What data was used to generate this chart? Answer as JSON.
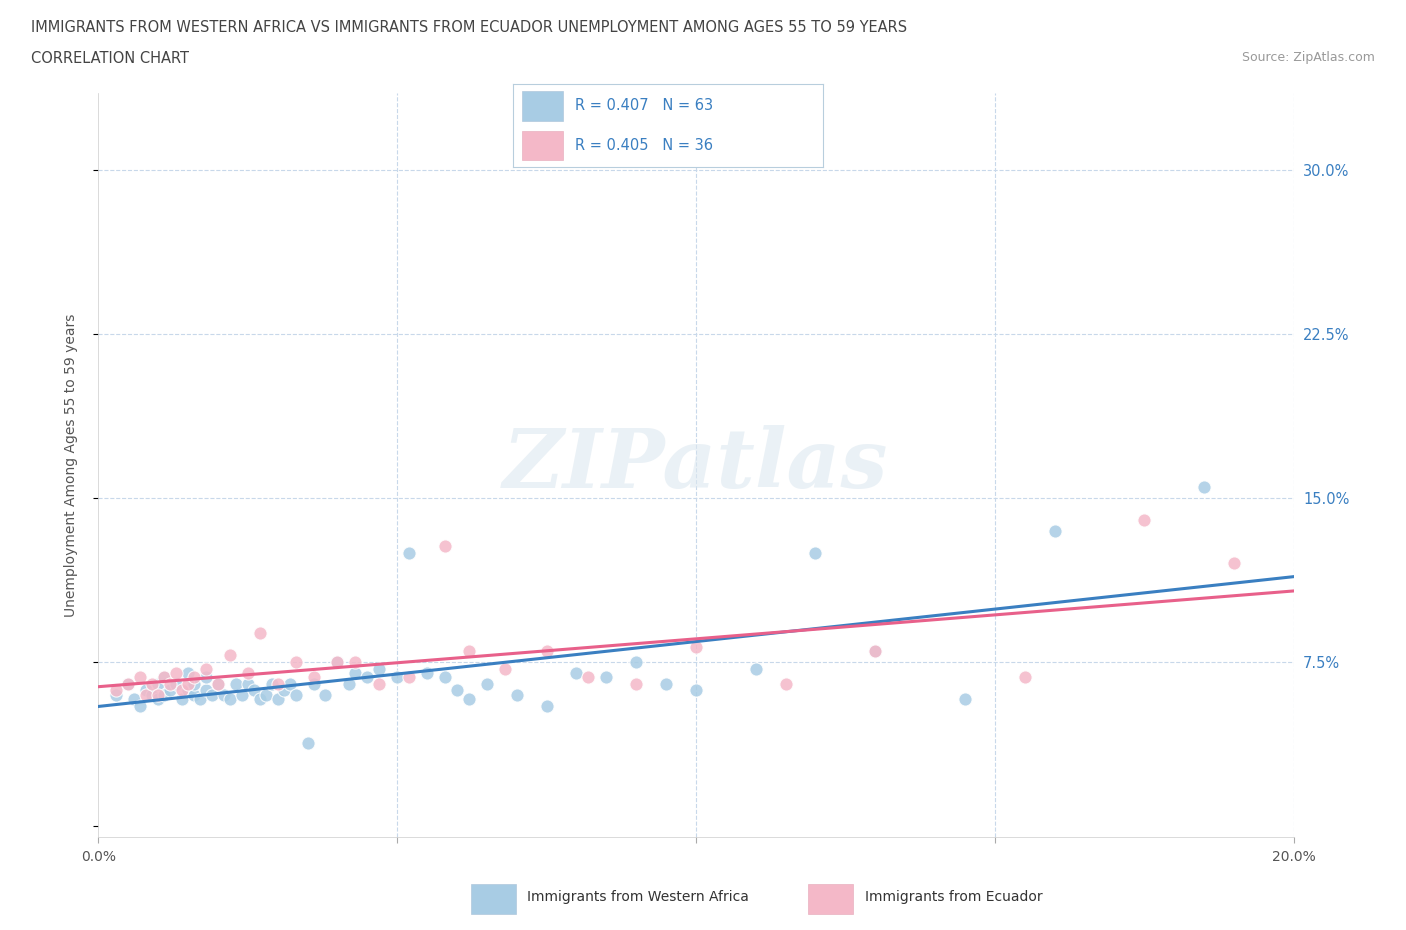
{
  "title_line1": "IMMIGRANTS FROM WESTERN AFRICA VS IMMIGRANTS FROM ECUADOR UNEMPLOYMENT AMONG AGES 55 TO 59 YEARS",
  "title_line2": "CORRELATION CHART",
  "source": "Source: ZipAtlas.com",
  "ylabel": "Unemployment Among Ages 55 to 59 years",
  "xlim": [
    0.0,
    0.2
  ],
  "ylim": [
    -0.005,
    0.335
  ],
  "yticks": [
    0.0,
    0.075,
    0.15,
    0.225,
    0.3
  ],
  "ytick_labels_right": [
    "",
    "7.5%",
    "15.0%",
    "22.5%",
    "30.0%"
  ],
  "xticks": [
    0.0,
    0.05,
    0.1,
    0.15,
    0.2
  ],
  "xtick_labels": [
    "0.0%",
    "",
    "",
    "",
    "20.0%"
  ],
  "blue_label": "Immigrants from Western Africa",
  "pink_label": "Immigrants from Ecuador",
  "blue_R": "R = 0.407",
  "blue_N": "N = 63",
  "pink_R": "R = 0.405",
  "pink_N": "N = 36",
  "blue_color": "#a8cce4",
  "pink_color": "#f4b8c8",
  "blue_line_color": "#3a7fc1",
  "pink_line_color": "#e8608a",
  "blue_text_color": "#3a7fc1",
  "pink_text_color": "#e8608a",
  "watermark": "ZIPatlas",
  "bg_color": "#ffffff",
  "grid_color": "#c8d8ea",
  "blue_x": [
    0.003,
    0.005,
    0.006,
    0.007,
    0.008,
    0.009,
    0.01,
    0.01,
    0.011,
    0.011,
    0.012,
    0.013,
    0.014,
    0.015,
    0.015,
    0.016,
    0.016,
    0.017,
    0.018,
    0.018,
    0.019,
    0.02,
    0.021,
    0.022,
    0.023,
    0.024,
    0.025,
    0.026,
    0.027,
    0.028,
    0.029,
    0.03,
    0.031,
    0.032,
    0.033,
    0.035,
    0.036,
    0.038,
    0.04,
    0.042,
    0.043,
    0.045,
    0.047,
    0.05,
    0.052,
    0.055,
    0.058,
    0.06,
    0.062,
    0.065,
    0.07,
    0.075,
    0.08,
    0.085,
    0.09,
    0.095,
    0.1,
    0.11,
    0.12,
    0.13,
    0.145,
    0.16,
    0.185
  ],
  "blue_y": [
    0.06,
    0.065,
    0.058,
    0.055,
    0.062,
    0.06,
    0.058,
    0.065,
    0.06,
    0.068,
    0.062,
    0.065,
    0.058,
    0.062,
    0.07,
    0.06,
    0.065,
    0.058,
    0.062,
    0.068,
    0.06,
    0.065,
    0.06,
    0.058,
    0.065,
    0.06,
    0.065,
    0.062,
    0.058,
    0.06,
    0.065,
    0.058,
    0.062,
    0.065,
    0.06,
    0.038,
    0.065,
    0.06,
    0.075,
    0.065,
    0.07,
    0.068,
    0.072,
    0.068,
    0.125,
    0.07,
    0.068,
    0.062,
    0.058,
    0.065,
    0.06,
    0.055,
    0.07,
    0.068,
    0.075,
    0.065,
    0.062,
    0.072,
    0.125,
    0.08,
    0.058,
    0.135,
    0.155
  ],
  "pink_x": [
    0.003,
    0.005,
    0.007,
    0.008,
    0.009,
    0.01,
    0.011,
    0.012,
    0.013,
    0.014,
    0.015,
    0.016,
    0.018,
    0.02,
    0.022,
    0.025,
    0.027,
    0.03,
    0.033,
    0.036,
    0.04,
    0.043,
    0.047,
    0.052,
    0.058,
    0.062,
    0.068,
    0.075,
    0.082,
    0.09,
    0.1,
    0.115,
    0.13,
    0.155,
    0.175,
    0.19
  ],
  "pink_y": [
    0.062,
    0.065,
    0.068,
    0.06,
    0.065,
    0.06,
    0.068,
    0.065,
    0.07,
    0.062,
    0.065,
    0.068,
    0.072,
    0.065,
    0.078,
    0.07,
    0.088,
    0.065,
    0.075,
    0.068,
    0.075,
    0.075,
    0.065,
    0.068,
    0.128,
    0.08,
    0.072,
    0.08,
    0.068,
    0.065,
    0.082,
    0.065,
    0.08,
    0.068,
    0.14,
    0.12
  ]
}
